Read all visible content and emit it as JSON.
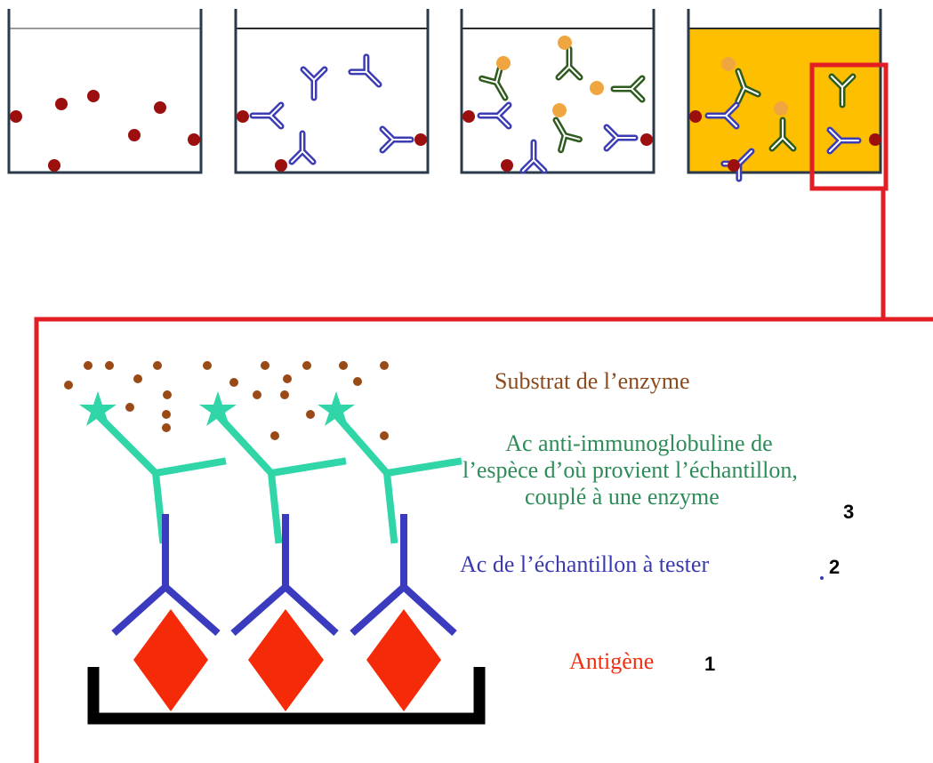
{
  "colors": {
    "antigen_dot": "#9b0f0f",
    "sample_antibody": "#3c3cb4",
    "secondary_antibody": "#2f5b1f",
    "enzyme": "#f0a640",
    "substrate_fill": "#fdbf00",
    "highlight_frame": "#e21d24",
    "well_wall": "#2a3a4a",
    "zoom_antigen": "#f52a08",
    "zoom_sample_antibody": "#3b3bbf",
    "zoom_conjugate": "#30d6a8",
    "substrate_dot": "#9a4a16",
    "label_substrate": "#8d4a1c",
    "label_conjugate": "#2d8c57",
    "label_sample": "#3a3ab0",
    "label_antigen": "#f03010"
  },
  "wells": [
    {
      "step": 1,
      "contents": [
        "antigen"
      ],
      "filled": false
    },
    {
      "step": 2,
      "contents": [
        "antigen",
        "sample-antibody"
      ],
      "filled": false
    },
    {
      "step": 3,
      "contents": [
        "antigen",
        "sample-antibody",
        "enzyme-conjugate"
      ],
      "filled": false
    },
    {
      "step": 4,
      "contents": [
        "antigen",
        "sample-antibody",
        "enzyme-conjugate",
        "substrate"
      ],
      "filled": true,
      "highlighted": true
    }
  ],
  "zoom": {
    "labels": {
      "substrate": "Substrat de l’enzyme",
      "conjugate_line1": "Ac anti-immunoglobuline de",
      "conjugate_line2": "l’espèce d’où provient l’échantillon,",
      "conjugate_line3": "couplé à une enzyme",
      "sample_antibody": "Ac de l’échantillon à tester",
      "antigen": "Antigène"
    },
    "numbers": {
      "conjugate": "3",
      "sample_antibody": "2",
      "antigen": "1"
    }
  }
}
